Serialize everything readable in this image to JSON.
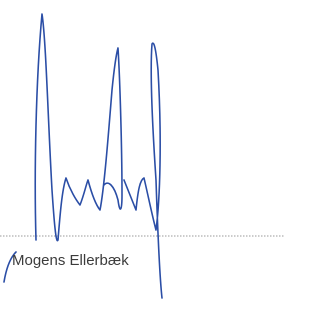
{
  "signature": {
    "name": "Mogens Ellerbæk"
  }
}
